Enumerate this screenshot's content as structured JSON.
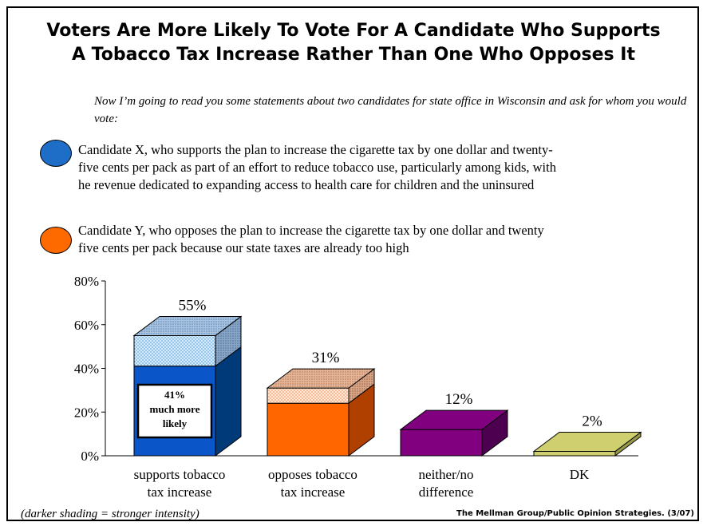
{
  "header": {
    "title_line1": "Voters Are More Likely To Vote For A Candidate Who Supports",
    "title_line2": "A Tobacco Tax Increase Rather Than One Who Opposes It"
  },
  "intro": "Now I’m going to read you some statements about two candidates for state office in Wisconsin and ask for whom you would vote:",
  "candidates": {
    "x": {
      "line1": "Candidate X, who supports the plan to increase the cigarette tax by one dollar and twenty-",
      "line2": "five cents per pack as part of an effort to reduce tobacco use, particularly among kids, with",
      "line3": "he revenue dedicated to expanding access to health care for children and the uninsured",
      "color": "#1e6ec8"
    },
    "y": {
      "line1": "Candidate Y, who opposes the plan to increase the cigarette tax by one dollar and twenty",
      "line2": "five cents per pack because our state taxes are already too high",
      "color": "#ff6a00"
    }
  },
  "chart_data": {
    "type": "bar",
    "categories": [
      [
        "supports tobacco",
        "tax increase"
      ],
      [
        "opposes tobacco",
        "tax increase"
      ],
      [
        "neither/no",
        "difference"
      ],
      [
        "DK"
      ]
    ],
    "values": [
      55,
      31,
      12,
      2
    ],
    "value_labels": [
      "55%",
      "31%",
      "12%",
      "2%"
    ],
    "strong_values": [
      41,
      24,
      null,
      null
    ],
    "ylim": [
      0,
      80
    ],
    "yticks": [
      0,
      20,
      40,
      60,
      80
    ],
    "ytick_labels": [
      "0%",
      "20%",
      "40%",
      "60%",
      "80%"
    ],
    "annotation": {
      "line1": "41%",
      "line2": "much more",
      "line3": "likely"
    },
    "colors": {
      "supports_dark": "#0a55c8",
      "supports_side": "#003a78",
      "supports_light": "#cfe6f7",
      "opposes_dark": "#ff6600",
      "opposes_side": "#b04000",
      "opposes_light": "#fde6d6",
      "neither_front": "#800080",
      "neither_side": "#4d0050",
      "dk_front": "#cfcf70",
      "dk_side": "#99994a"
    }
  },
  "footer": {
    "note": "(darker shading = stronger intensity)",
    "source": "The Mellman Group/Public Opinion Strategies. (3/07)"
  }
}
